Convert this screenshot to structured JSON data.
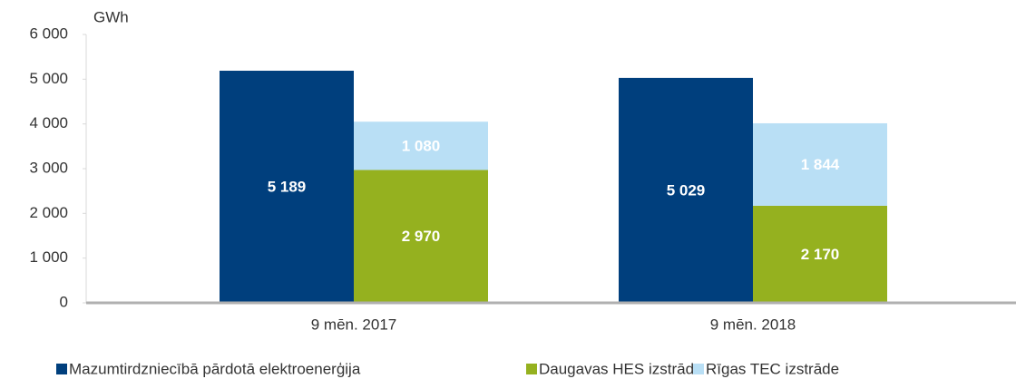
{
  "chart_data": {
    "type": "bar",
    "y_label": "GWh",
    "categories": [
      "9 mēn. 2017",
      "9 mēn. 2018"
    ],
    "series": [
      {
        "name": "Mazumtirdzniecībā pārdotā elektroenerģija",
        "color": "#003f7d",
        "values": [
          5189,
          5029
        ],
        "value_labels": [
          "5 189",
          "5 029"
        ]
      },
      {
        "name": "Daugavas HES izstrāde",
        "color": "#95b11f",
        "values": [
          2970,
          2170
        ],
        "value_labels": [
          "2 970",
          "2 170"
        ]
      },
      {
        "name": "Rīgas TEC izstrāde",
        "color": "#b9dff5",
        "values": [
          1080,
          1844
        ],
        "value_labels": [
          "1 080",
          "1 844"
        ]
      }
    ],
    "ylim": [
      0,
      6000
    ],
    "yticks": [
      0,
      {
        "value": 1000,
        "label": "1 000"
      },
      {
        "value": 2000,
        "label": "2 000"
      },
      {
        "value": 3000,
        "label": "3 000"
      },
      {
        "value": 4000,
        "label": "4 000"
      },
      {
        "value": 5000,
        "label": "5 000"
      },
      {
        "value": 6000,
        "label": "6 000"
      }
    ],
    "grid": false,
    "legend": "bottom"
  }
}
